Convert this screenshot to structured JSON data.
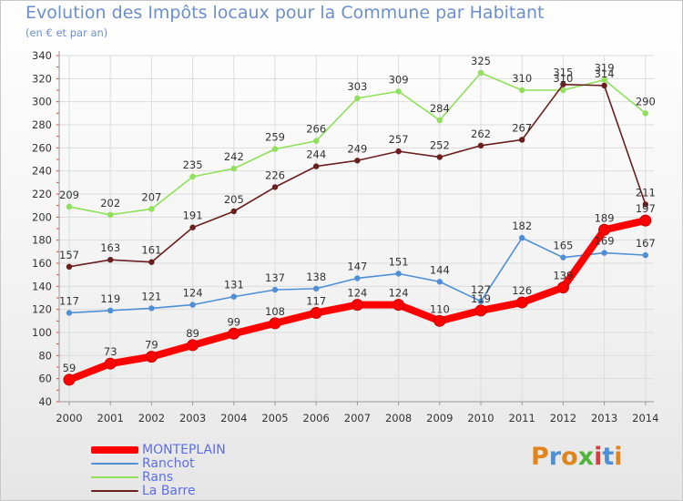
{
  "title": "Evolution des Impôts locaux pour la Commune par Habitant",
  "subtitle": "(en € et par an)",
  "logo": {
    "letters": [
      "P",
      "r",
      "o",
      "x",
      "i",
      "t",
      "i"
    ],
    "colors": [
      "#e0851d",
      "#4f8fd6",
      "#e0851d",
      "#4fb43a",
      "#d63f3f",
      "#4f8fd6",
      "#e0851d"
    ]
  },
  "chart_data": {
    "type": "line",
    "x": [
      "2000",
      "2001",
      "2002",
      "2003",
      "2004",
      "2005",
      "2006",
      "2007",
      "2008",
      "2009",
      "2010",
      "2011",
      "2012",
      "2013",
      "2014"
    ],
    "ylim": [
      40,
      340
    ],
    "yticks": [
      40,
      60,
      80,
      100,
      120,
      140,
      160,
      180,
      200,
      220,
      240,
      260,
      280,
      300,
      320,
      340
    ],
    "grid": true,
    "legend_position": "bottom-left",
    "series": [
      {
        "name": "MONTEPLAIN",
        "color": "#ff0000",
        "values": [
          59,
          73,
          79,
          89,
          99,
          108,
          117,
          124,
          124,
          110,
          119,
          126,
          139,
          189,
          197
        ],
        "labels": [
          "59",
          "73",
          "79",
          "89",
          "99",
          "108",
          "117",
          "124",
          "124",
          "110",
          "119",
          "126",
          "139",
          "189",
          "197"
        ],
        "emphasis": true
      },
      {
        "name": "Ranchot",
        "color": "#4f8fd6",
        "values": [
          117,
          119,
          121,
          124,
          131,
          137,
          138,
          147,
          151,
          144,
          127,
          182,
          165,
          169,
          167
        ],
        "labels": [
          "117",
          "119",
          "121",
          "124",
          "131",
          "137",
          "138",
          "147",
          "151",
          "144",
          "127",
          "182",
          "165",
          "169",
          "167"
        ]
      },
      {
        "name": "Rans",
        "color": "#8fe05a",
        "values": [
          209,
          202,
          207,
          235,
          242,
          259,
          266,
          303,
          309,
          284,
          325,
          310,
          310,
          319,
          290
        ],
        "labels": [
          "209",
          "202",
          "207",
          "235",
          "242",
          "259",
          "266",
          "303",
          "309",
          "284",
          "325",
          "310",
          "310",
          "319",
          "290"
        ]
      },
      {
        "name": "La Barre",
        "color": "#6b1f1f",
        "values": [
          157,
          163,
          161,
          191,
          205,
          226,
          244,
          249,
          257,
          252,
          262,
          267,
          315,
          314,
          211
        ],
        "labels": [
          "157",
          "163",
          "161",
          "191",
          "205",
          "226",
          "244",
          "249",
          "257",
          "252",
          "262",
          "267",
          "315",
          "314",
          "211"
        ]
      }
    ]
  }
}
